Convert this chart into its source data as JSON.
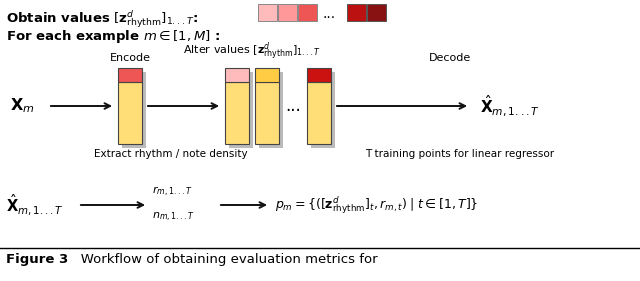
{
  "bg_color": "#ffffff",
  "colors": {
    "light_pink": "#ffbbbb",
    "medium_pink": "#ff7777",
    "salmon": "#ee5555",
    "red": "#cc1111",
    "dark_red": "#991111",
    "yellow": "#ffdd77",
    "orange_yellow": "#ffcc44",
    "bar_outline": "#444444",
    "arrow_color": "#111111",
    "shadow": "#bbbbbb"
  },
  "sq_colors_light": [
    "#ffbbbb",
    "#ff9999",
    "#ee5555"
  ],
  "sq_colors_dark": [
    "#bb1111",
    "#881111"
  ],
  "top_text": "Obtain values $[\\mathbf{z}^d_{\\mathrm{rhythm}}]_{1...T}$:",
  "second_text": "For each example $m \\in [1, M]$ :",
  "encode_label": "Encode",
  "alter_label": "Alter values $[\\mathbf{z}^d_{\\mathrm{rhythm}}]_{1...T}$",
  "decode_label": "Decode",
  "extract_label": "Extract rhythm / note density",
  "training_label": "T training points for linear regressor",
  "caption_bold": "Figure 3",
  "caption_rest": "   Workflow of obtaining evaluation metrics for"
}
